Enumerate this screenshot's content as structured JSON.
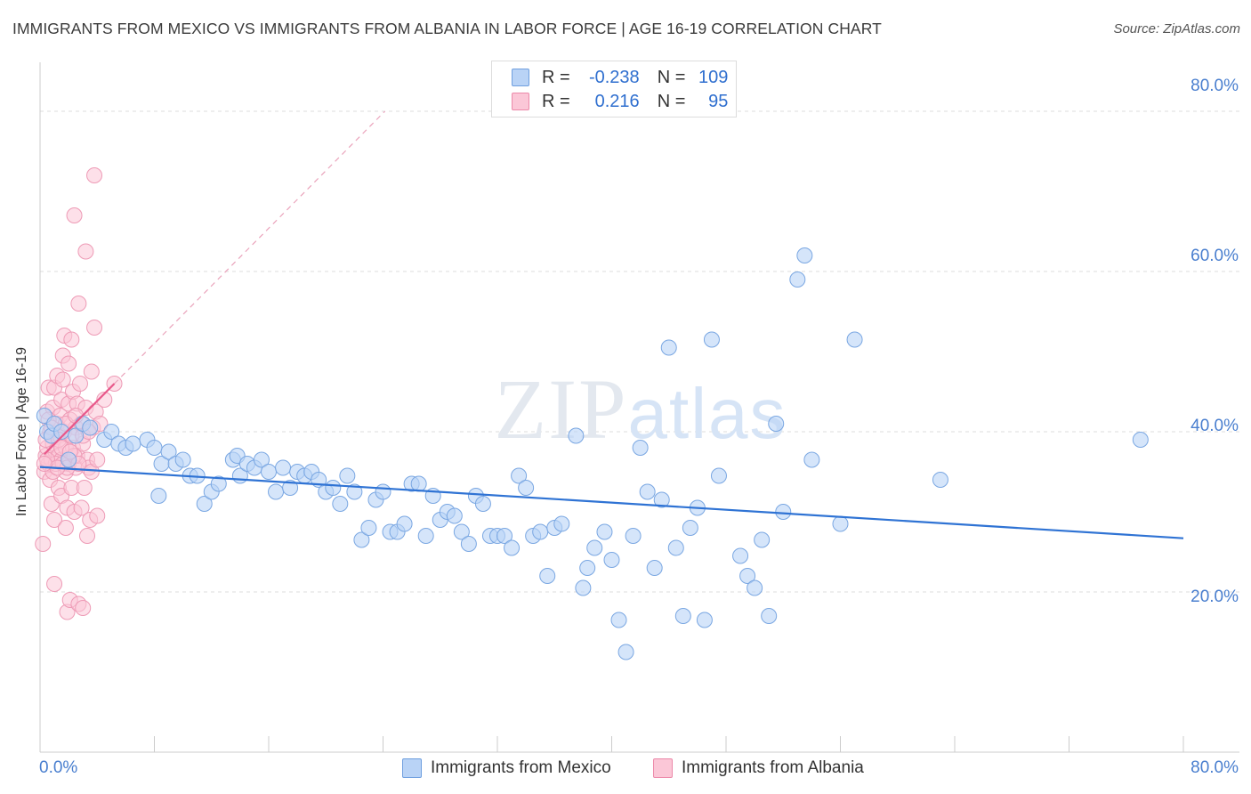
{
  "title": "IMMIGRANTS FROM MEXICO VS IMMIGRANTS FROM ALBANIA IN LABOR FORCE | AGE 16-19 CORRELATION CHART",
  "source": "Source: ZipAtlas.com",
  "watermark": "ZIPatlas",
  "stats": {
    "mexico": {
      "r_label": "R =",
      "r": "-0.238",
      "n_label": "N =",
      "n": "109"
    },
    "albania": {
      "r_label": "R =",
      "r": "0.216",
      "n_label": "N =",
      "n": "95"
    }
  },
  "legend": {
    "mexico": "Immigrants from Mexico",
    "albania": "Immigrants from Albania"
  },
  "colors": {
    "mexico_fill": "#b9d3f6",
    "mexico_line": "#2f73d4",
    "albania_fill": "#fbc7d7",
    "albania_line": "#e8588a",
    "tick_text": "#4a7fcf"
  },
  "chart_data": {
    "type": "scatter",
    "xlabel": "",
    "ylabel": "In Labor Force | Age 16-19",
    "xlim": [
      0,
      80
    ],
    "ylim": [
      0,
      85
    ],
    "y_ticks": [
      "80.0%",
      "60.0%",
      "40.0%",
      "20.0%"
    ],
    "y_tick_values": [
      80,
      60,
      40,
      20
    ],
    "x_tick_labels": [
      "0.0%",
      "80.0%"
    ],
    "grid": true,
    "legend_position": "bottom",
    "series": [
      {
        "name": "Immigrants from Mexico",
        "trend": [
          [
            0,
            35.6
          ],
          [
            80,
            26.7
          ]
        ],
        "points": [
          [
            0.3,
            42
          ],
          [
            0.5,
            40
          ],
          [
            0.8,
            39.5
          ],
          [
            1,
            41
          ],
          [
            1.5,
            40
          ],
          [
            2,
            36.5
          ],
          [
            2.5,
            39.5
          ],
          [
            3,
            41
          ],
          [
            3.5,
            40.5
          ],
          [
            4.5,
            39
          ],
          [
            5,
            40
          ],
          [
            5.5,
            38.5
          ],
          [
            6,
            38
          ],
          [
            6.5,
            38.5
          ],
          [
            7.5,
            39
          ],
          [
            8,
            38
          ],
          [
            8.5,
            36
          ],
          [
            8.3,
            32
          ],
          [
            9,
            37.5
          ],
          [
            9.5,
            36
          ],
          [
            10,
            36.5
          ],
          [
            10.5,
            34.5
          ],
          [
            11,
            34.5
          ],
          [
            11.5,
            31
          ],
          [
            12,
            32.5
          ],
          [
            12.5,
            33.5
          ],
          [
            13.5,
            36.5
          ],
          [
            13.8,
            37
          ],
          [
            14,
            34.5
          ],
          [
            14.5,
            36
          ],
          [
            15,
            35.5
          ],
          [
            15.5,
            36.5
          ],
          [
            16,
            35
          ],
          [
            16.5,
            32.5
          ],
          [
            17,
            35.5
          ],
          [
            17.5,
            33
          ],
          [
            18,
            35
          ],
          [
            18.5,
            34.5
          ],
          [
            19,
            35
          ],
          [
            19.5,
            34
          ],
          [
            20,
            32.5
          ],
          [
            20.5,
            33
          ],
          [
            21,
            31
          ],
          [
            21.5,
            34.5
          ],
          [
            22,
            32.5
          ],
          [
            22.5,
            26.5
          ],
          [
            23,
            28
          ],
          [
            23.5,
            31.5
          ],
          [
            24,
            32.5
          ],
          [
            24.5,
            27.5
          ],
          [
            25,
            27.5
          ],
          [
            25.5,
            28.5
          ],
          [
            26,
            33.5
          ],
          [
            26.5,
            33.5
          ],
          [
            27,
            27
          ],
          [
            27.5,
            32
          ],
          [
            28,
            29
          ],
          [
            28.5,
            30
          ],
          [
            29,
            29.5
          ],
          [
            29.5,
            27.5
          ],
          [
            30,
            26
          ],
          [
            30.5,
            32
          ],
          [
            31,
            31
          ],
          [
            31.5,
            27
          ],
          [
            32,
            27
          ],
          [
            32.5,
            27
          ],
          [
            33,
            25.5
          ],
          [
            33.5,
            34.5
          ],
          [
            34,
            33
          ],
          [
            34.5,
            27
          ],
          [
            35,
            27.5
          ],
          [
            35.5,
            22
          ],
          [
            36,
            28
          ],
          [
            36.5,
            28.5
          ],
          [
            37.5,
            39.5
          ],
          [
            38,
            20.5
          ],
          [
            38.3,
            23
          ],
          [
            38.8,
            25.5
          ],
          [
            39.5,
            27.5
          ],
          [
            40,
            24
          ],
          [
            40.5,
            16.5
          ],
          [
            41,
            12.5
          ],
          [
            41.5,
            27
          ],
          [
            42,
            38
          ],
          [
            42.5,
            32.5
          ],
          [
            43,
            23
          ],
          [
            43.5,
            31.5
          ],
          [
            44,
            50.5
          ],
          [
            44.5,
            25.5
          ],
          [
            45,
            17
          ],
          [
            45.5,
            28
          ],
          [
            46,
            30.5
          ],
          [
            46.5,
            16.5
          ],
          [
            47,
            51.5
          ],
          [
            47.5,
            34.5
          ],
          [
            49,
            24.5
          ],
          [
            49.5,
            22
          ],
          [
            50,
            20.5
          ],
          [
            50.5,
            26.5
          ],
          [
            51,
            17
          ],
          [
            51.5,
            41
          ],
          [
            52,
            30
          ],
          [
            53,
            59
          ],
          [
            53.5,
            62
          ],
          [
            54,
            36.5
          ],
          [
            56,
            28.5
          ],
          [
            57,
            51.5
          ],
          [
            63,
            34
          ],
          [
            77,
            39
          ]
        ]
      },
      {
        "name": "Immigrants from Albania",
        "trend": [
          [
            0.3,
            37.2
          ],
          [
            5.2,
            46
          ]
        ],
        "points": [
          [
            0.2,
            26
          ],
          [
            0.3,
            35
          ],
          [
            0.4,
            37
          ],
          [
            0.5,
            38
          ],
          [
            0.5,
            42.5
          ],
          [
            0.6,
            36
          ],
          [
            0.6,
            45.5
          ],
          [
            0.7,
            40
          ],
          [
            0.7,
            34
          ],
          [
            0.8,
            31
          ],
          [
            0.8,
            36.5
          ],
          [
            0.9,
            38.5
          ],
          [
            0.9,
            43
          ],
          [
            1,
            45.5
          ],
          [
            1,
            29
          ],
          [
            1,
            21
          ],
          [
            1.1,
            37.5
          ],
          [
            1.2,
            41
          ],
          [
            1.2,
            47
          ],
          [
            1.3,
            33
          ],
          [
            1.3,
            37
          ],
          [
            1.4,
            39.5
          ],
          [
            1.4,
            42
          ],
          [
            1.5,
            44
          ],
          [
            1.5,
            36.5
          ],
          [
            1.5,
            32
          ],
          [
            1.6,
            46.5
          ],
          [
            1.6,
            49.5
          ],
          [
            1.7,
            52
          ],
          [
            1.7,
            40
          ],
          [
            1.8,
            38
          ],
          [
            1.8,
            35
          ],
          [
            1.8,
            28
          ],
          [
            1.9,
            17.5
          ],
          [
            1.9,
            30.5
          ],
          [
            2,
            43.5
          ],
          [
            2,
            48.5
          ],
          [
            2,
            36
          ],
          [
            2.1,
            41.5
          ],
          [
            2.1,
            19
          ],
          [
            2.2,
            51.5
          ],
          [
            2.2,
            33
          ],
          [
            2.3,
            38
          ],
          [
            2.3,
            45
          ],
          [
            2.4,
            67
          ],
          [
            2.4,
            30
          ],
          [
            2.5,
            40.5
          ],
          [
            2.5,
            35.5
          ],
          [
            2.6,
            43.5
          ],
          [
            2.6,
            37
          ],
          [
            2.7,
            18.5
          ],
          [
            2.7,
            56
          ],
          [
            2.8,
            46
          ],
          [
            2.9,
            41
          ],
          [
            2.9,
            30.5
          ],
          [
            3,
            18
          ],
          [
            3,
            38.5
          ],
          [
            3.1,
            33
          ],
          [
            3.2,
            62.5
          ],
          [
            3.2,
            43
          ],
          [
            3.3,
            36.5
          ],
          [
            3.3,
            27
          ],
          [
            3.4,
            35.5
          ],
          [
            3.5,
            29
          ],
          [
            3.6,
            47.5
          ],
          [
            3.6,
            35
          ],
          [
            3.7,
            40.5
          ],
          [
            3.8,
            72
          ],
          [
            3.8,
            53
          ],
          [
            3.9,
            42.5
          ],
          [
            4,
            29.5
          ],
          [
            4,
            36.5
          ],
          [
            4.2,
            41
          ],
          [
            4.5,
            44
          ],
          [
            5.2,
            46
          ],
          [
            0.4,
            39
          ],
          [
            0.6,
            41.5
          ],
          [
            0.9,
            35
          ],
          [
            1.1,
            36
          ],
          [
            1.3,
            39
          ],
          [
            1.6,
            36
          ],
          [
            1.9,
            35.5
          ],
          [
            2.2,
            39.5
          ],
          [
            2.4,
            37
          ],
          [
            2.7,
            36
          ],
          [
            0.5,
            36.5
          ],
          [
            0.8,
            40.5
          ],
          [
            1.2,
            35.5
          ],
          [
            1.5,
            38
          ],
          [
            1.8,
            41
          ],
          [
            2.1,
            37.5
          ],
          [
            2.5,
            42
          ],
          [
            3,
            39.5
          ],
          [
            3.4,
            40
          ],
          [
            0.3,
            36
          ]
        ]
      }
    ]
  }
}
